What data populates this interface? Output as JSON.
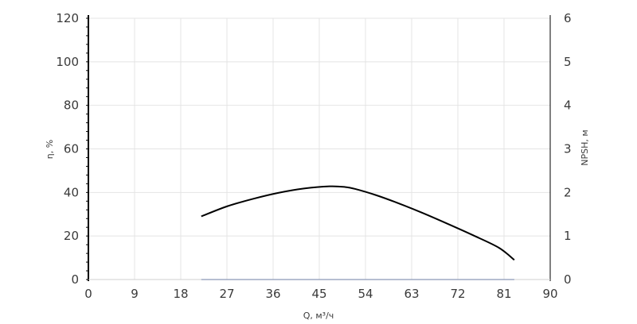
{
  "chart_data": {
    "type": "line",
    "xlabel": "Q, м³/ч",
    "ylabel": "η, %",
    "y2label": "NPSH, м",
    "xlim": [
      0,
      90
    ],
    "ylim": [
      0,
      120
    ],
    "y2lim": [
      0,
      6
    ],
    "x_ticks": [
      "0",
      "9",
      "18",
      "27",
      "36",
      "45",
      "54",
      "63",
      "72",
      "81",
      "90"
    ],
    "y_ticks": [
      "0",
      "20",
      "40",
      "60",
      "80",
      "100",
      "120"
    ],
    "y2_ticks": [
      "0",
      "1",
      "2",
      "3",
      "4",
      "5",
      "6"
    ],
    "grid": true,
    "series": [
      {
        "axis": "left",
        "color": "#000000",
        "x": [
          22,
          27,
          32,
          37,
          42,
          47,
          50,
          52,
          56,
          60,
          65,
          70,
          75,
          80,
          83
        ],
        "y": [
          29,
          33.6,
          37,
          39.8,
          41.8,
          42.8,
          42.5,
          41.6,
          38.8,
          35.4,
          30.7,
          25.6,
          20.3,
          14.6,
          9
        ]
      },
      {
        "axis": "right",
        "color": "#3b5ba8",
        "x": [
          22,
          83
        ],
        "y": [
          0,
          0
        ]
      }
    ]
  }
}
